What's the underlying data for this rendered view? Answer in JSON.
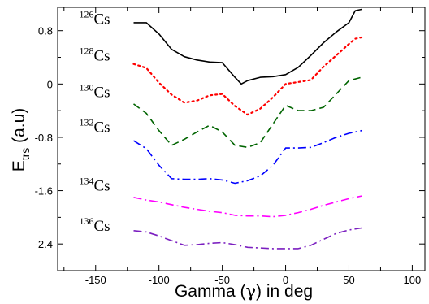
{
  "chart_data": {
    "type": "line",
    "xlabel_parts": [
      "Gamma (",
      "γ",
      ") in deg"
    ],
    "ylabel_parts": [
      "E",
      "trs",
      " (a.u)"
    ],
    "xlim": [
      -180,
      110
    ],
    "ylim": [
      -2.8,
      1.15
    ],
    "x_ticks": [
      -150,
      -100,
      -50,
      0,
      50,
      100
    ],
    "x_tick_labels": [
      "-150",
      "-100",
      "-50",
      "0",
      "50",
      "100"
    ],
    "y_ticks": [
      -2.4,
      -1.6,
      -0.8,
      0,
      0.8
    ],
    "y_tick_labels": [
      "-2.4",
      "-1.6",
      "-0.8",
      "0",
      "0.8"
    ],
    "series": [
      {
        "name": "126Cs",
        "mass": "126",
        "element": "Cs",
        "color": "#000000",
        "dash": "solid",
        "label_x": -163,
        "label_y": 0.9,
        "points": [
          [
            -120,
            0.92
          ],
          [
            -110,
            0.92
          ],
          [
            -100,
            0.75
          ],
          [
            -90,
            0.52
          ],
          [
            -80,
            0.41
          ],
          [
            -70,
            0.36
          ],
          [
            -60,
            0.33
          ],
          [
            -50,
            0.32
          ],
          [
            -40,
            0.1
          ],
          [
            -35,
            0.0
          ],
          [
            -30,
            0.05
          ],
          [
            -20,
            0.1
          ],
          [
            -10,
            0.11
          ],
          [
            0,
            0.14
          ],
          [
            10,
            0.25
          ],
          [
            20,
            0.43
          ],
          [
            30,
            0.62
          ],
          [
            40,
            0.78
          ],
          [
            50,
            0.92
          ],
          [
            55,
            1.1
          ],
          [
            60,
            1.12
          ]
        ]
      },
      {
        "name": "128Cs",
        "mass": "128",
        "element": "Cs",
        "color": "#ff0000",
        "dash": "dot",
        "label_x": -163,
        "label_y": 0.35,
        "points": [
          [
            -120,
            0.3
          ],
          [
            -110,
            0.24
          ],
          [
            -100,
            0.02
          ],
          [
            -90,
            -0.16
          ],
          [
            -80,
            -0.28
          ],
          [
            -70,
            -0.25
          ],
          [
            -60,
            -0.17
          ],
          [
            -50,
            -0.15
          ],
          [
            -40,
            -0.33
          ],
          [
            -30,
            -0.46
          ],
          [
            -20,
            -0.37
          ],
          [
            -10,
            -0.2
          ],
          [
            0,
            0.0
          ],
          [
            10,
            0.03
          ],
          [
            20,
            0.06
          ],
          [
            30,
            0.26
          ],
          [
            40,
            0.43
          ],
          [
            50,
            0.6
          ],
          [
            55,
            0.68
          ],
          [
            60,
            0.7
          ]
        ]
      },
      {
        "name": "130Cs",
        "mass": "130",
        "element": "Cs",
        "color": "#006400",
        "dash": "dash",
        "label_x": -163,
        "label_y": -0.2,
        "points": [
          [
            -120,
            -0.3
          ],
          [
            -110,
            -0.44
          ],
          [
            -100,
            -0.7
          ],
          [
            -90,
            -0.92
          ],
          [
            -80,
            -0.83
          ],
          [
            -70,
            -0.72
          ],
          [
            -60,
            -0.62
          ],
          [
            -50,
            -0.72
          ],
          [
            -40,
            -0.92
          ],
          [
            -30,
            -0.95
          ],
          [
            -20,
            -0.88
          ],
          [
            -10,
            -0.6
          ],
          [
            0,
            -0.32
          ],
          [
            10,
            -0.4
          ],
          [
            20,
            -0.4
          ],
          [
            30,
            -0.35
          ],
          [
            40,
            -0.15
          ],
          [
            50,
            0.05
          ],
          [
            60,
            0.1
          ]
        ]
      },
      {
        "name": "132Cs",
        "mass": "132",
        "element": "Cs",
        "color": "#0000ff",
        "dash": "dashdot",
        "label_x": -163,
        "label_y": -0.72,
        "points": [
          [
            -120,
            -0.85
          ],
          [
            -110,
            -0.97
          ],
          [
            -100,
            -1.22
          ],
          [
            -90,
            -1.42
          ],
          [
            -80,
            -1.43
          ],
          [
            -70,
            -1.43
          ],
          [
            -60,
            -1.42
          ],
          [
            -50,
            -1.44
          ],
          [
            -40,
            -1.49
          ],
          [
            -30,
            -1.45
          ],
          [
            -20,
            -1.38
          ],
          [
            -10,
            -1.22
          ],
          [
            0,
            -0.96
          ],
          [
            10,
            -0.96
          ],
          [
            20,
            -0.95
          ],
          [
            30,
            -0.88
          ],
          [
            40,
            -0.8
          ],
          [
            50,
            -0.74
          ],
          [
            60,
            -0.7
          ]
        ]
      },
      {
        "name": "134Cs",
        "mass": "134",
        "element": "Cs",
        "color": "#ff00ff",
        "dash": "dashdot",
        "label_x": -163,
        "label_y": -1.6,
        "points": [
          [
            -120,
            -1.7
          ],
          [
            -110,
            -1.74
          ],
          [
            -100,
            -1.77
          ],
          [
            -90,
            -1.81
          ],
          [
            -80,
            -1.85
          ],
          [
            -70,
            -1.88
          ],
          [
            -60,
            -1.91
          ],
          [
            -50,
            -1.93
          ],
          [
            -40,
            -1.97
          ],
          [
            -30,
            -1.98
          ],
          [
            -20,
            -1.98
          ],
          [
            -10,
            -1.99
          ],
          [
            0,
            -1.97
          ],
          [
            10,
            -1.93
          ],
          [
            20,
            -1.88
          ],
          [
            30,
            -1.82
          ],
          [
            40,
            -1.77
          ],
          [
            50,
            -1.72
          ],
          [
            60,
            -1.68
          ]
        ]
      },
      {
        "name": "136Cs",
        "mass": "136",
        "element": "Cs",
        "color": "#7b1fc0",
        "dash": "dashdot",
        "label_x": -163,
        "label_y": -2.2,
        "points": [
          [
            -120,
            -2.2
          ],
          [
            -110,
            -2.22
          ],
          [
            -100,
            -2.28
          ],
          [
            -90,
            -2.35
          ],
          [
            -80,
            -2.42
          ],
          [
            -70,
            -2.41
          ],
          [
            -60,
            -2.39
          ],
          [
            -50,
            -2.38
          ],
          [
            -40,
            -2.41
          ],
          [
            -30,
            -2.45
          ],
          [
            -20,
            -2.46
          ],
          [
            -10,
            -2.47
          ],
          [
            0,
            -2.47
          ],
          [
            10,
            -2.47
          ],
          [
            20,
            -2.42
          ],
          [
            30,
            -2.33
          ],
          [
            40,
            -2.24
          ],
          [
            50,
            -2.19
          ],
          [
            60,
            -2.16
          ]
        ]
      }
    ]
  }
}
